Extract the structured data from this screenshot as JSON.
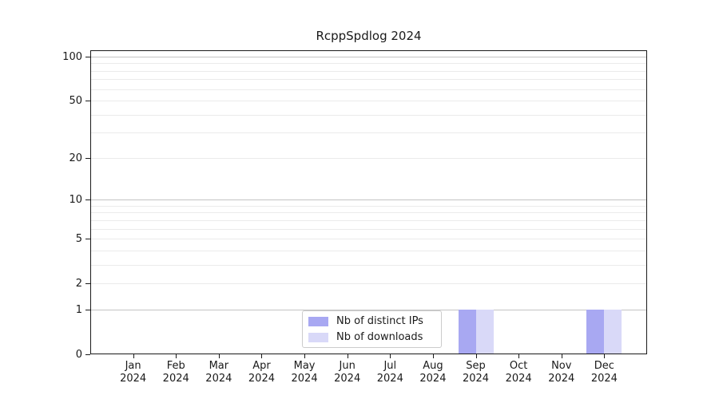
{
  "chart_data": {
    "type": "bar",
    "title": "RcppSpdlog 2024",
    "categories": [
      "Jan 2024",
      "Feb 2024",
      "Mar 2024",
      "Apr 2024",
      "May 2024",
      "Jun 2024",
      "Jul 2024",
      "Aug 2024",
      "Sep 2024",
      "Oct 2024",
      "Nov 2024",
      "Dec 2024"
    ],
    "series": [
      {
        "name": "Nb of distinct IPs",
        "color": "#a8a8f2",
        "values": [
          0,
          0,
          0,
          0,
          0,
          0,
          0,
          0,
          1,
          0,
          0,
          1
        ]
      },
      {
        "name": "Nb of downloads",
        "color": "#d9d9f8",
        "values": [
          0,
          0,
          0,
          0,
          0,
          0,
          0,
          0,
          1,
          0,
          0,
          1
        ]
      }
    ],
    "xlabel": "",
    "ylabel": "",
    "y_scale": "log1p",
    "y_ticks": [
      0,
      1,
      2,
      5,
      10,
      20,
      50,
      100
    ],
    "y_major_grid": [
      1,
      10,
      100
    ],
    "y_minor_grid": [
      2,
      3,
      4,
      5,
      6,
      7,
      8,
      9,
      20,
      30,
      40,
      50,
      60,
      70,
      80,
      90
    ],
    "ylim": [
      0,
      110
    ],
    "grid": "horizontal",
    "legend_position": "bottom-center"
  },
  "colors": {
    "grid_major": "#c3c3c3",
    "grid_minor": "#ebebeb",
    "spine": "#1a1a1a",
    "background": "#ffffff"
  }
}
